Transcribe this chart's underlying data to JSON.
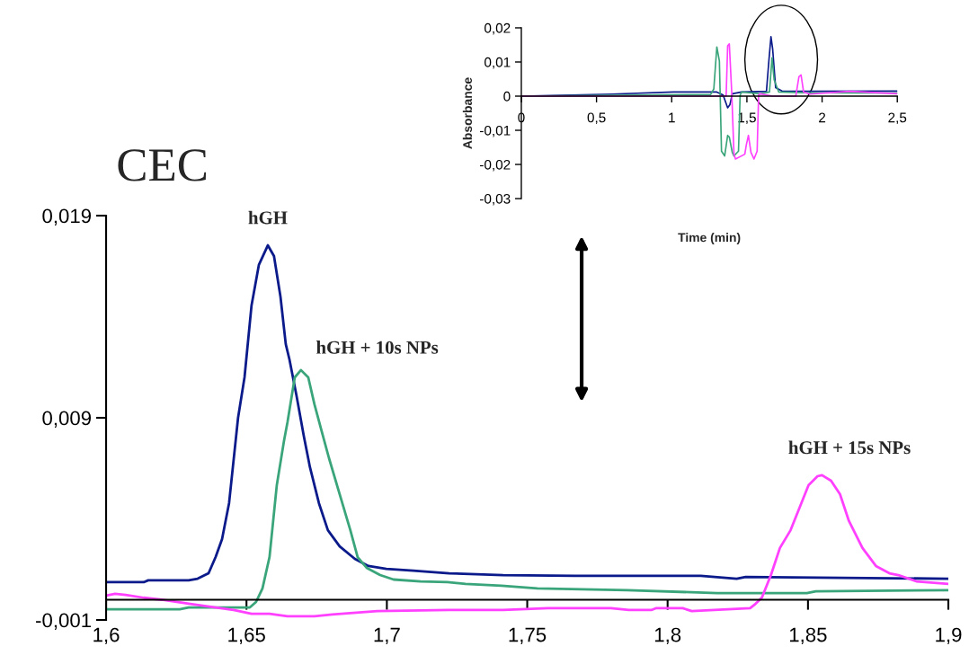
{
  "chart_data": [
    {
      "type": "line",
      "title": "CEC",
      "xlim": [
        1.6,
        1.9
      ],
      "ylim": [
        -0.001,
        0.019
      ],
      "xticks": [
        {
          "value": 1.6,
          "label": "1,6"
        },
        {
          "value": 1.65,
          "label": "1,65"
        },
        {
          "value": 1.7,
          "label": "1,7"
        },
        {
          "value": 1.75,
          "label": "1,75"
        },
        {
          "value": 1.8,
          "label": "1,8"
        },
        {
          "value": 1.85,
          "label": "1,85"
        },
        {
          "value": 1.9,
          "label": "1,9"
        }
      ],
      "yticks": [
        {
          "value": -0.001,
          "label": "-0,001"
        },
        {
          "value": 0.009,
          "label": "0,009"
        },
        {
          "value": 0.019,
          "label": "0,019"
        }
      ],
      "series": [
        {
          "name": "hGH",
          "color": "#0a1a8a",
          "x": [
            1.6,
            1.6134,
            1.615,
            1.6294,
            1.6326,
            1.6365,
            1.639,
            1.6413,
            1.6438,
            1.647,
            1.6493,
            1.6518,
            1.6544,
            1.6576,
            1.6598,
            1.6621,
            1.664,
            1.6653,
            1.6678,
            1.6704,
            1.6726,
            1.6758,
            1.679,
            1.6832,
            1.6886,
            1.6934,
            1.6998,
            1.7094,
            1.7222,
            1.7414,
            1.767,
            1.7862,
            1.8118,
            1.8246,
            1.8278,
            1.9
          ],
          "values": [
            0.00087,
            0.00087,
            0.00096,
            0.00096,
            0.00104,
            0.00131,
            0.00211,
            0.003,
            0.00478,
            0.009,
            0.011,
            0.01456,
            0.01656,
            0.01753,
            0.017,
            0.015,
            0.01264,
            0.01189,
            0.01011,
            0.00811,
            0.00656,
            0.00478,
            0.00344,
            0.00264,
            0.00202,
            0.00167,
            0.00153,
            0.00144,
            0.00131,
            0.00122,
            0.00118,
            0.00118,
            0.00118,
            0.00104,
            0.00113,
            0.00104
          ]
        },
        {
          "name": "hGH + 10s NPs",
          "color": "#3aa57a",
          "x": [
            1.6,
            1.6262,
            1.6294,
            1.6486,
            1.6512,
            1.6534,
            1.6557,
            1.6582,
            1.6608,
            1.6634,
            1.6646,
            1.6672,
            1.6694,
            1.672,
            1.6742,
            1.6768,
            1.6794,
            1.6832,
            1.687,
            1.6896,
            1.6928,
            1.6976,
            1.7024,
            1.712,
            1.7216,
            1.728,
            1.7408,
            1.7536,
            1.7856,
            1.8176,
            1.8496,
            1.8528,
            1.9
          ],
          "values": [
            -0.00047,
            -0.00047,
            -0.00038,
            -0.00038,
            -0.00038,
            -0.00011,
            0.00056,
            0.00211,
            0.00567,
            0.00789,
            0.00878,
            0.011,
            0.01136,
            0.011,
            0.00967,
            0.00833,
            0.007,
            0.00522,
            0.00344,
            0.00211,
            0.00158,
            0.00122,
            0.001,
            0.00091,
            0.00087,
            0.00078,
            0.00069,
            0.00056,
            0.00047,
            0.00033,
            0.00033,
            0.00042,
            0.00047
          ]
        },
        {
          "name": "hGH + 15s NPs",
          "color": "#ff40ff",
          "x": [
            1.6,
            1.6032,
            1.607,
            1.6134,
            1.6198,
            1.6294,
            1.639,
            1.6454,
            1.6518,
            1.6582,
            1.6646,
            1.6742,
            1.6806,
            1.6966,
            1.7222,
            1.7414,
            1.7574,
            1.7798,
            1.7862,
            1.7942,
            1.7958,
            1.8054,
            1.8086,
            1.8294,
            1.831,
            1.8336,
            1.8368,
            1.84,
            1.8438,
            1.847,
            1.8502,
            1.8534,
            1.855,
            1.8582,
            1.8614,
            1.8646,
            1.8694,
            1.8742,
            1.879,
            1.8822,
            1.8886,
            1.9
          ],
          "values": [
            0.0002,
            0.00029,
            0.00024,
            0.0001,
            0.0,
            -0.0002,
            -0.00038,
            -0.00051,
            -0.00069,
            -0.00069,
            -0.00082,
            -0.00082,
            -0.00073,
            -0.00056,
            -0.00051,
            -0.00051,
            -0.00042,
            -0.00042,
            -0.00051,
            -0.00051,
            -0.00042,
            -0.00042,
            -0.00056,
            -0.00042,
            -0.00024,
            0.00011,
            0.00122,
            0.00256,
            0.00344,
            0.00456,
            0.00567,
            0.00611,
            0.00616,
            0.00589,
            0.00522,
            0.00389,
            0.00256,
            0.00167,
            0.00131,
            0.00122,
            0.00091,
            0.00078
          ]
        }
      ]
    },
    {
      "type": "line",
      "xlabel": "Time (min)",
      "ylabel": "Absorbance",
      "xlim": [
        0,
        2.5
      ],
      "ylim": [
        -0.03,
        0.02
      ],
      "xticks": [
        0,
        {
          "value": 0.5,
          "label": "0,5"
        },
        1,
        {
          "value": 1.5,
          "label": "1,5"
        },
        2,
        {
          "value": 2.5,
          "label": "2,5"
        }
      ],
      "yticks": [
        {
          "value": -0.03,
          "label": "-0,03"
        },
        {
          "value": -0.02,
          "label": "-0,02"
        },
        {
          "value": -0.01,
          "label": "-0,01"
        },
        0,
        {
          "value": 0.01,
          "label": "0,01"
        },
        {
          "value": 0.02,
          "label": "0,02"
        }
      ],
      "series": [
        {
          "color": "#0a1a8a",
          "x": [
            0,
            0.128,
            0.601,
            1.012,
            1.3,
            1.342,
            1.372,
            1.387,
            1.403,
            1.465,
            1.63,
            1.646,
            1.66,
            1.671,
            1.691,
            1.733,
            1.877,
            2.5
          ],
          "values": [
            0,
            0.0001,
            0.0006,
            0.0012,
            0.0012,
            0.0003,
            -0.0034,
            -0.0025,
            0.0007,
            0.0012,
            0.0014,
            0.0103,
            0.0174,
            0.0139,
            0.0025,
            0.0015,
            0.0014,
            0.0015
          ]
        },
        {
          "color": "#3aa57a",
          "x": [
            0,
            1.259,
            1.28,
            1.3,
            1.317,
            1.331,
            1.352,
            1.372,
            1.383,
            1.403,
            1.414,
            1.444,
            1.455,
            1.465,
            1.588,
            1.65,
            1.667,
            1.681,
            1.712,
            1.877,
            2.5
          ],
          "values": [
            0,
            0.0005,
            0.0021,
            0.0144,
            0.0103,
            -0.0161,
            -0.0175,
            -0.0115,
            -0.012,
            -0.0165,
            -0.0175,
            -0.0161,
            0.0003,
            0.0012,
            0.0007,
            0.0012,
            0.0112,
            0.0048,
            0.0012,
            0.001,
            0.0009
          ]
        },
        {
          "color": "#ff40ff",
          "x": [
            0,
            1.259,
            1.362,
            1.372,
            1.383,
            1.399,
            1.414,
            1.424,
            1.486,
            1.496,
            1.51,
            1.527,
            1.547,
            1.568,
            1.578,
            1.588,
            1.671,
            1.825,
            1.846,
            1.86,
            1.877,
            1.918,
            2.185,
            2.5
          ],
          "values": [
            0,
            0,
            0.0001,
            0.0147,
            0.0153,
            0.0012,
            -0.017,
            -0.0184,
            -0.017,
            -0.0143,
            -0.0115,
            -0.0165,
            -0.0184,
            -0.0161,
            0.0003,
            0.0007,
            0,
            0,
            0.0057,
            0.0062,
            0.0012,
            0.0006,
            0.0014,
            0.0007
          ]
        }
      ]
    }
  ]
}
